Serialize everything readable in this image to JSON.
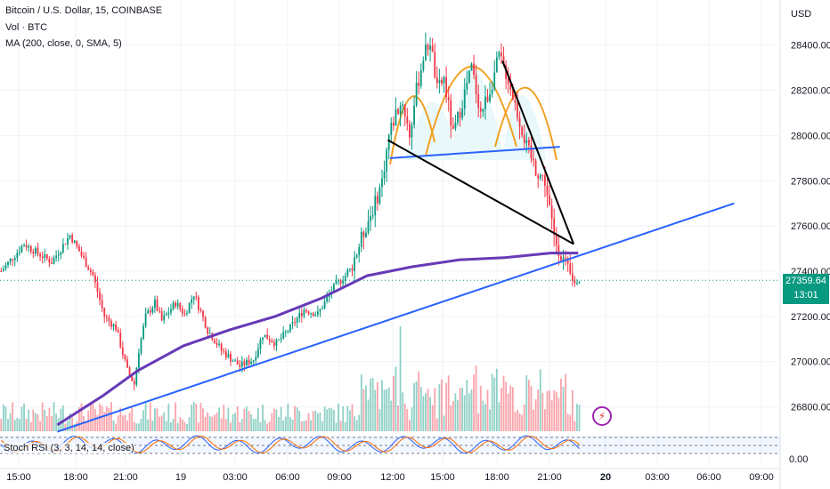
{
  "header": {
    "symbol_title": "Bitcoin / U.S. Dollar, 15, COINBASE",
    "vol_label": "Vol · BTC",
    "ma_label": "MA (200, close, 0, SMA, 5)",
    "currency": "USD"
  },
  "price_tag": {
    "price": "27359.64",
    "countdown": "13:01",
    "color": "#089981"
  },
  "stoch_label": "Stoch RSI (3, 3, 14, 14, close)",
  "stoch_axis": "0.00",
  "badge_icon": "lightning-icon",
  "chart_data": {
    "type": "candlestick",
    "x_ticks": [
      "15:00",
      "18:00",
      "21:00",
      "19",
      "03:00",
      "06:00",
      "09:00",
      "12:00",
      "15:00",
      "18:00",
      "21:00",
      "20",
      "03:00",
      "06:00",
      "09:00"
    ],
    "y_ticks": [
      26800,
      27000,
      27200,
      27400,
      27600,
      27800,
      28000,
      28200,
      28400
    ],
    "ylim": [
      26700,
      28560
    ],
    "current_price": 27359.64,
    "price_path": [
      [
        0,
        27400
      ],
      [
        10,
        27520
      ],
      [
        22,
        27440
      ],
      [
        30,
        27560
      ],
      [
        40,
        27380
      ],
      [
        45,
        27200
      ],
      [
        50,
        27150
      ],
      [
        55,
        26960
      ],
      [
        58,
        26900
      ],
      [
        60,
        27050
      ],
      [
        63,
        27200
      ],
      [
        67,
        27260
      ],
      [
        70,
        27180
      ],
      [
        76,
        27260
      ],
      [
        80,
        27210
      ],
      [
        84,
        27300
      ],
      [
        90,
        27140
      ],
      [
        96,
        27050
      ],
      [
        104,
        26980
      ],
      [
        110,
        27010
      ],
      [
        114,
        27120
      ],
      [
        120,
        27080
      ],
      [
        126,
        27150
      ],
      [
        132,
        27230
      ],
      [
        138,
        27210
      ],
      [
        145,
        27330
      ],
      [
        152,
        27400
      ],
      [
        159,
        27600
      ],
      [
        163,
        27700
      ],
      [
        166,
        27800
      ],
      [
        169,
        28000
      ],
      [
        172,
        28100
      ],
      [
        175,
        28150
      ],
      [
        178,
        28000
      ],
      [
        181,
        28200
      ],
      [
        184,
        28350
      ],
      [
        187,
        28420
      ],
      [
        190,
        28200
      ],
      [
        193,
        28250
      ],
      [
        197,
        28000
      ],
      [
        201,
        28150
      ],
      [
        205,
        28300
      ],
      [
        209,
        28100
      ],
      [
        213,
        28200
      ],
      [
        217,
        28350
      ],
      [
        221,
        28250
      ],
      [
        225,
        28100
      ],
      [
        229,
        27950
      ],
      [
        233,
        27850
      ],
      [
        237,
        27800
      ],
      [
        241,
        27550
      ],
      [
        245,
        27450
      ],
      [
        249,
        27350
      ],
      [
        252,
        27360
      ]
    ],
    "series": [
      {
        "name": "MA (200, close, 0, SMA, 5)",
        "color": "#673ab7",
        "points": [
          [
            25,
            26720
          ],
          [
            45,
            26850
          ],
          [
            60,
            26960
          ],
          [
            80,
            27070
          ],
          [
            100,
            27140
          ],
          [
            120,
            27200
          ],
          [
            140,
            27280
          ],
          [
            160,
            27380
          ],
          [
            180,
            27420
          ],
          [
            200,
            27450
          ],
          [
            220,
            27460
          ],
          [
            240,
            27480
          ],
          [
            252,
            27480
          ]
        ]
      }
    ],
    "annotations": {
      "trendline_support": {
        "color": "#2962ff",
        "from": [
          25,
          26690
        ],
        "to": [
          320,
          27700
        ]
      },
      "neckline": {
        "color": "#2962ff",
        "from": [
          170,
          27900
        ],
        "to": [
          244,
          27950
        ]
      },
      "triangle_upper": {
        "color": "#000000",
        "from": [
          219,
          28330
        ],
        "to": [
          250,
          27520
        ]
      },
      "triangle_lower": {
        "color": "#000000",
        "from": [
          169,
          27980
        ],
        "to": [
          250,
          27520
        ]
      },
      "head_and_shoulders_arcs": {
        "color": "#f0a020",
        "shading": "#e0f7fa"
      }
    },
    "volume_panel": true,
    "stoch_rsi_panel": {
      "k_color": "#2962ff",
      "d_color": "#ff6d00"
    }
  }
}
